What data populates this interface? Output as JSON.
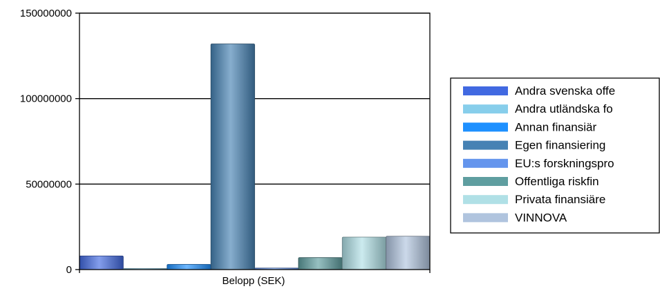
{
  "chart_data": {
    "type": "bar",
    "xlabel": "Belopp (SEK)",
    "categories": [
      "Belopp (SEK)"
    ],
    "ylim": [
      0,
      150000000
    ],
    "yticks": [
      0,
      50000000,
      100000000,
      150000000
    ],
    "ytick_labels": [
      "0",
      "50000000",
      "100000000",
      "150000000"
    ],
    "grid": true,
    "legend_position": "right",
    "series": [
      {
        "name": "Andra svenska offe",
        "value": 8000000,
        "color": "#4169e1"
      },
      {
        "name": "Andra utländska fo",
        "value": 500000,
        "color": "#87ceeb"
      },
      {
        "name": "Annan finansiär",
        "value": 3000000,
        "color": "#1e90ff"
      },
      {
        "name": "Egen finansiering",
        "value": 132000000,
        "color": "#4682b4"
      },
      {
        "name": "EU:s forskningspro",
        "value": 900000,
        "color": "#6495ed"
      },
      {
        "name": "Offentliga riskfin",
        "value": 7000000,
        "color": "#5f9ea0"
      },
      {
        "name": "Privata finansiäre",
        "value": 19000000,
        "color": "#b0e0e6"
      },
      {
        "name": "VINNOVA",
        "value": 19500000,
        "color": "#b0c4de"
      }
    ]
  }
}
